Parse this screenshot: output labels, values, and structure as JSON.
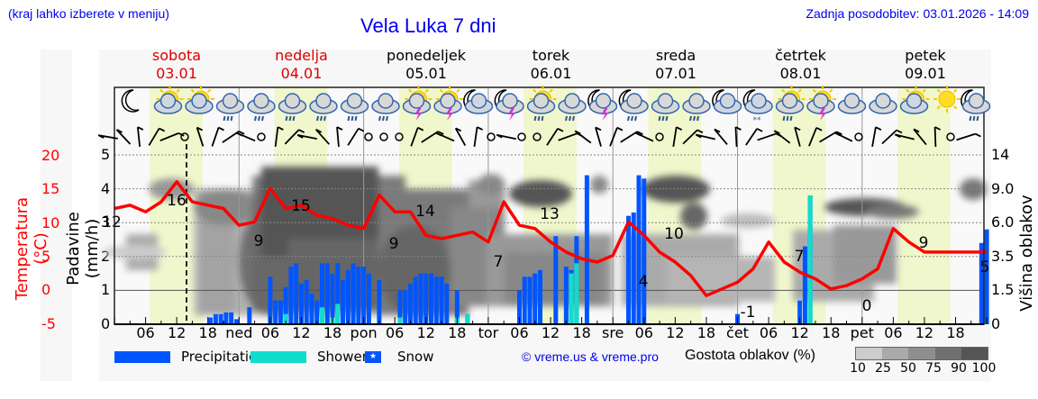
{
  "header": {
    "menu_hint": "(kraj lahko izberete v meniju)",
    "title": "Vela Luka 7 dni",
    "last_update": "Zadnja posodobitev: 03.01.2026 - 14:09"
  },
  "days": [
    {
      "name": "sobota",
      "date": "03.01",
      "weekend": true
    },
    {
      "name": "nedelja",
      "date": "04.01",
      "weekend": true
    },
    {
      "name": "ponedeljek",
      "date": "05.01",
      "weekend": false
    },
    {
      "name": "torek",
      "date": "06.01",
      "weekend": false
    },
    {
      "name": "sreda",
      "date": "07.01",
      "weekend": false
    },
    {
      "name": "četrtek",
      "date": "08.01",
      "weekend": false
    },
    {
      "name": "petek",
      "date": "09.01",
      "weekend": false
    }
  ],
  "axes": {
    "left_temp_label": "Temperatura (°C)",
    "left_temp_ticks": [
      "20",
      "15",
      "10",
      "5",
      "0",
      "-5"
    ],
    "left_precip_label": "Padavine (mm/h)",
    "left_precip_ticks": [
      "5",
      "4",
      "3",
      "2",
      "1",
      "0"
    ],
    "right_label": "Višina oblakov (km)",
    "right_ticks": [
      "14",
      "9.0",
      "6.0",
      "3.5",
      "1.5",
      "0"
    ],
    "x_ticks": [
      "06",
      "12",
      "18",
      "ned",
      "06",
      "12",
      "18",
      "pon",
      "06",
      "12",
      "18",
      "tor",
      "06",
      "12",
      "18",
      "sre",
      "06",
      "12",
      "18",
      "čet",
      "06",
      "12",
      "18",
      "pet",
      "06",
      "12",
      "18"
    ]
  },
  "legend": {
    "precipitation": "Precipitation",
    "showers": "Showers",
    "snow": "Snow",
    "copyright": "© vreme.us & vreme.pro",
    "cloud_density_label": "Gostota oblakov (%)",
    "cloud_density_ticks": [
      "10",
      "25",
      "50",
      "75",
      "90",
      "100"
    ]
  },
  "colors": {
    "precipitation": "#0055ff",
    "showers": "#11ddcc",
    "temperature": "#ff0000",
    "daylight": "#f0f7cc",
    "weekend_text": "#dd0000"
  },
  "chart_data": {
    "type": "line",
    "title": "Vela Luka 7 dni",
    "xlabel": "",
    "ylabel": "Temperatura (°C) / Padavine (mm/h)",
    "y2label": "Višina oblakov (km)",
    "ylim_temp": [
      -5,
      20
    ],
    "ylim_precip": [
      0,
      5
    ],
    "grid": true,
    "legend_position": "bottom",
    "temperature_labels": [
      {
        "day": "sob 00",
        "value": 12
      },
      {
        "day": "sob 12",
        "value": 16
      },
      {
        "day": "ned 00",
        "value": 9
      },
      {
        "day": "ned 12",
        "value": 15
      },
      {
        "day": "pon 00",
        "value": 9
      },
      {
        "day": "pon 12",
        "value": 14
      },
      {
        "day": "tor 00",
        "value": 7
      },
      {
        "day": "tor 12",
        "value": 13
      },
      {
        "day": "sre 00",
        "value": 4
      },
      {
        "day": "sre 12",
        "value": 10
      },
      {
        "day": "čet 00",
        "value": -1
      },
      {
        "day": "čet 12",
        "value": 7
      },
      {
        "day": "pet 00",
        "value": 0
      },
      {
        "day": "pet 12",
        "value": 9
      },
      {
        "day": "pet 24",
        "value": 5
      }
    ],
    "series": [
      {
        "name": "Temperature",
        "unit": "°C",
        "x_hours": [
          0,
          3,
          6,
          9,
          12,
          15,
          18,
          21,
          24,
          27,
          30,
          33,
          36,
          39,
          42,
          45,
          48,
          51,
          54,
          57,
          60,
          63,
          66,
          69,
          72,
          75,
          78,
          81,
          84,
          87,
          90,
          93,
          96,
          99,
          102,
          105,
          108,
          111,
          114,
          117,
          120,
          123,
          126,
          129,
          132,
          135,
          138,
          141,
          144,
          147,
          150,
          153,
          156,
          159,
          162,
          165,
          168
        ],
        "values": [
          12,
          12.5,
          11.5,
          13,
          16,
          13,
          12.5,
          12,
          9.5,
          10,
          15,
          12,
          12.5,
          11,
          10.5,
          9.5,
          9,
          14,
          11.5,
          11.5,
          8,
          7.5,
          8,
          8.5,
          7,
          13,
          9.5,
          9,
          7,
          5.5,
          4.5,
          4,
          5,
          10,
          8,
          5.5,
          4,
          2,
          -1,
          0,
          1,
          3,
          7,
          4,
          2.5,
          1.5,
          0,
          0.5,
          1.5,
          3,
          9,
          7,
          5.5,
          5.5,
          5.5,
          5.5,
          5.5
        ]
      },
      {
        "name": "Precipitation",
        "unit": "mm/h"
      },
      {
        "name": "Showers",
        "unit": "mm/h"
      }
    ]
  }
}
